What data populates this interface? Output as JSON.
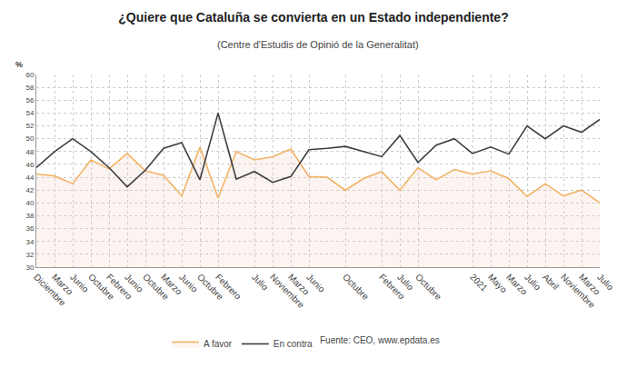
{
  "chart_data": {
    "type": "line",
    "title": "¿Quiere que Cataluña se convierta en un Estado independiente?",
    "subtitle": "(Centre d'Estudis de Opinió de la Generalitat)",
    "y_label": "%",
    "source": "Fuente: CEO, www.epdata.es",
    "categories": [
      "Diciembre",
      "Marzo",
      "Junio",
      "Octubre",
      "Febrero",
      "Junio",
      "Octubre",
      "Marzo",
      "Junio",
      "Octubre",
      "Febrero",
      null,
      "Julio",
      "Noviembre",
      "Marzo",
      "Junio",
      null,
      "Octubre",
      null,
      "Febrero",
      "Julio",
      "Octubre",
      null,
      null,
      "2021",
      "Mayo",
      "Marzo",
      "Julio",
      "Abril",
      "Noviembre",
      "Marzo",
      "Julio"
    ],
    "series": [
      {
        "name": "A favor",
        "color": "#f2b366",
        "values": [
          44.5,
          44.2,
          43.0,
          46.7,
          45.3,
          47.7,
          45.0,
          44.3,
          41.1,
          48.7,
          40.8,
          48.0,
          46.7,
          47.2,
          48.4,
          44.1,
          44.0,
          42.0,
          43.8,
          44.9,
          42.0,
          45.5,
          43.6,
          45.2,
          44.5,
          45.0,
          43.8,
          41.0,
          43.0,
          41.1,
          42.0,
          40.0
        ]
      },
      {
        "name": "En contra",
        "color": "#3c3c44",
        "values": [
          45.5,
          48.0,
          50.0,
          48.0,
          45.5,
          42.5,
          45.1,
          48.5,
          49.4,
          43.6,
          54.0,
          43.7,
          44.9,
          43.2,
          44.1,
          48.3,
          48.5,
          48.8,
          48.0,
          47.2,
          50.5,
          46.3,
          49.0,
          50.0,
          47.7,
          48.7,
          47.6,
          52.0,
          50.0,
          52.0,
          51.0,
          53.0
        ]
      }
    ],
    "ylim": [
      30,
      60
    ],
    "yticks": [
      30,
      32,
      34,
      36,
      38,
      40,
      42,
      44,
      46,
      48,
      50,
      52,
      54,
      56,
      58,
      60
    ],
    "grid": true,
    "legend": "bottom"
  }
}
